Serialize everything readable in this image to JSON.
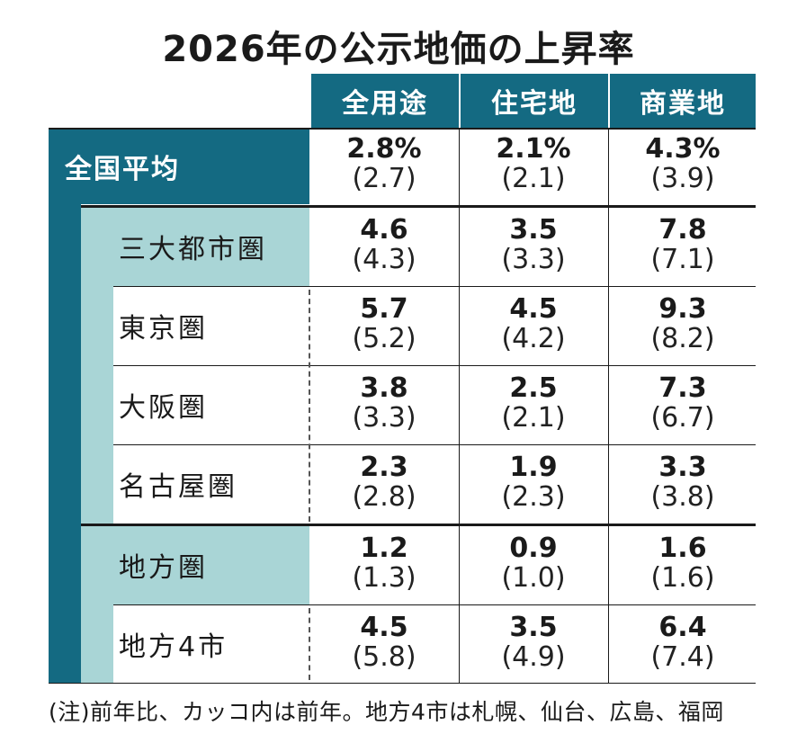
{
  "title": "2026年の公示地価の上昇率",
  "columns": [
    "全用途",
    "住宅地",
    "商業地"
  ],
  "national": {
    "label": "全国平均",
    "values": [
      {
        "current": "2.8%",
        "previous": "(2.7)"
      },
      {
        "current": "2.1%",
        "previous": "(2.1)"
      },
      {
        "current": "4.3%",
        "previous": "(3.9)"
      }
    ]
  },
  "rows": [
    {
      "label": "三大都市圏",
      "values": [
        {
          "current": "4.6",
          "previous": "(4.3)"
        },
        {
          "current": "3.5",
          "previous": "(3.3)"
        },
        {
          "current": "7.8",
          "previous": "(7.1)"
        }
      ]
    },
    {
      "label": "東京圏",
      "values": [
        {
          "current": "5.7",
          "previous": "(5.2)"
        },
        {
          "current": "4.5",
          "previous": "(4.2)"
        },
        {
          "current": "9.3",
          "previous": "(8.2)"
        }
      ]
    },
    {
      "label": "大阪圏",
      "values": [
        {
          "current": "3.8",
          "previous": "(3.3)"
        },
        {
          "current": "2.5",
          "previous": "(2.1)"
        },
        {
          "current": "7.3",
          "previous": "(6.7)"
        }
      ]
    },
    {
      "label": "名古屋圏",
      "values": [
        {
          "current": "2.3",
          "previous": "(2.8)"
        },
        {
          "current": "1.9",
          "previous": "(2.3)"
        },
        {
          "current": "3.3",
          "previous": "(3.8)"
        }
      ]
    },
    {
      "label": "地方圏",
      "values": [
        {
          "current": "1.2",
          "previous": "(1.3)"
        },
        {
          "current": "0.9",
          "previous": "(1.0)"
        },
        {
          "current": "1.6",
          "previous": "(1.6)"
        }
      ]
    },
    {
      "label": "地方4市",
      "values": [
        {
          "current": "4.5",
          "previous": "(5.8)"
        },
        {
          "current": "3.5",
          "previous": "(4.9)"
        },
        {
          "current": "6.4",
          "previous": "(7.4)"
        }
      ]
    }
  ],
  "note": "(注)前年比、カッコ内は前年。地方4市は札幌、仙台、広島、福岡",
  "colors": {
    "header": "#146a82",
    "light": "#a9d5d6"
  }
}
